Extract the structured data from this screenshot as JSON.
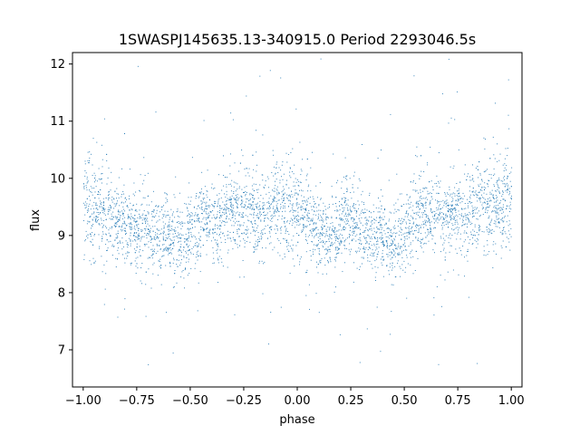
{
  "chart_data": {
    "type": "scatter",
    "title": "1SWASPJ145635.13-340915.0 Period 2293046.5s",
    "xlabel": "phase",
    "ylabel": "flux",
    "xlim": [
      -1.05,
      1.05
    ],
    "ylim": [
      6.35,
      12.2
    ],
    "xticks": [
      -1.0,
      -0.75,
      -0.5,
      -0.25,
      0.0,
      0.25,
      0.5,
      0.75,
      1.0
    ],
    "xtick_labels": [
      "−1.00",
      "−0.75",
      "−0.50",
      "−0.25",
      "0.00",
      "0.25",
      "0.50",
      "0.75",
      "1.00"
    ],
    "yticks": [
      7,
      8,
      9,
      10,
      11,
      12
    ],
    "ytick_labels": [
      "7",
      "8",
      "9",
      "10",
      "11",
      "12"
    ],
    "grid": false,
    "legend": "none",
    "marker_color": "#1f77b4",
    "series": [
      {
        "x": [
          -1.0,
          -0.98,
          -0.96,
          -0.94,
          -0.92,
          -0.9,
          -0.88,
          -0.86,
          -0.84,
          -0.82,
          -0.8,
          -0.78,
          -0.76,
          -0.74,
          -0.72,
          -0.7,
          -0.68,
          -0.66,
          -0.64,
          -0.62,
          -0.6,
          -0.58,
          -0.56,
          -0.54,
          -0.52,
          -0.5,
          -0.48,
          -0.46,
          -0.44,
          -0.42,
          -0.4,
          -0.38,
          -0.36,
          -0.34,
          -0.32,
          -0.3,
          -0.28,
          -0.26,
          -0.24,
          -0.22,
          -0.2,
          -0.18,
          -0.16,
          -0.14,
          -0.12,
          -0.1,
          -0.08,
          -0.06,
          -0.04,
          -0.02,
          0.0,
          0.02,
          0.04,
          0.06,
          0.08,
          0.1,
          0.12,
          0.14,
          0.16,
          0.18,
          0.2,
          0.22,
          0.24,
          0.26,
          0.28,
          0.3,
          0.32,
          0.34,
          0.36,
          0.38,
          0.4,
          0.42,
          0.44,
          0.46,
          0.48,
          0.5,
          0.52,
          0.54,
          0.56,
          0.58,
          0.6,
          0.62,
          0.64,
          0.66,
          0.68,
          0.7,
          0.72,
          0.74,
          0.76,
          0.78,
          0.8,
          0.82,
          0.84,
          0.86,
          0.88,
          0.9,
          0.92,
          0.94,
          0.96,
          0.98,
          1.0
        ],
        "y_center": [
          9.55,
          9.6,
          9.35,
          9.5,
          9.4,
          9.25,
          9.3,
          9.2,
          9.15,
          9.3,
          9.1,
          9.2,
          9.15,
          9.05,
          9.25,
          9.1,
          9.0,
          9.05,
          8.95,
          9.1,
          9.05,
          8.95,
          8.9,
          8.95,
          9.0,
          9.05,
          9.1,
          9.2,
          9.3,
          9.25,
          9.3,
          9.2,
          9.35,
          9.3,
          9.4,
          9.35,
          9.45,
          9.4,
          9.5,
          9.45,
          9.35,
          9.4,
          9.3,
          9.35,
          9.45,
          9.55,
          9.5,
          9.4,
          9.5,
          9.55,
          9.6,
          9.45,
          9.35,
          9.2,
          9.1,
          9.0,
          9.05,
          9.0,
          8.95,
          9.05,
          9.15,
          9.2,
          9.25,
          9.3,
          9.2,
          9.15,
          9.1,
          9.0,
          8.95,
          9.0,
          8.95,
          8.9,
          8.85,
          8.9,
          9.0,
          9.1,
          9.2,
          9.3,
          9.35,
          9.45,
          9.4,
          9.35,
          9.3,
          9.4,
          9.35,
          9.3,
          9.4,
          9.35,
          9.45,
          9.4,
          9.5,
          9.45,
          9.4,
          9.5,
          9.55,
          9.45,
          9.5,
          9.6,
          9.5,
          9.55,
          9.6
        ],
        "y_spread": [
          0.9,
          0.85,
          0.75,
          0.7,
          0.7,
          0.65,
          0.65,
          0.6,
          0.6,
          0.65,
          0.6,
          0.6,
          0.6,
          0.6,
          0.65,
          0.65,
          0.6,
          0.6,
          0.6,
          0.6,
          0.55,
          0.55,
          0.55,
          0.55,
          0.6,
          0.6,
          0.6,
          0.65,
          0.65,
          0.6,
          0.6,
          0.6,
          0.6,
          0.6,
          0.6,
          0.6,
          0.65,
          0.6,
          0.6,
          0.6,
          0.6,
          0.6,
          0.6,
          0.65,
          0.65,
          0.7,
          0.7,
          0.7,
          0.75,
          0.8,
          0.85,
          0.8,
          0.7,
          0.65,
          0.6,
          0.6,
          0.6,
          0.6,
          0.55,
          0.6,
          0.6,
          0.6,
          0.6,
          0.6,
          0.6,
          0.6,
          0.6,
          0.55,
          0.55,
          0.55,
          0.55,
          0.55,
          0.55,
          0.55,
          0.6,
          0.6,
          0.6,
          0.65,
          0.65,
          0.65,
          0.65,
          0.6,
          0.6,
          0.6,
          0.6,
          0.6,
          0.6,
          0.6,
          0.65,
          0.65,
          0.65,
          0.65,
          0.6,
          0.65,
          0.7,
          0.65,
          0.7,
          0.75,
          0.75,
          0.8,
          0.85
        ]
      }
    ]
  }
}
